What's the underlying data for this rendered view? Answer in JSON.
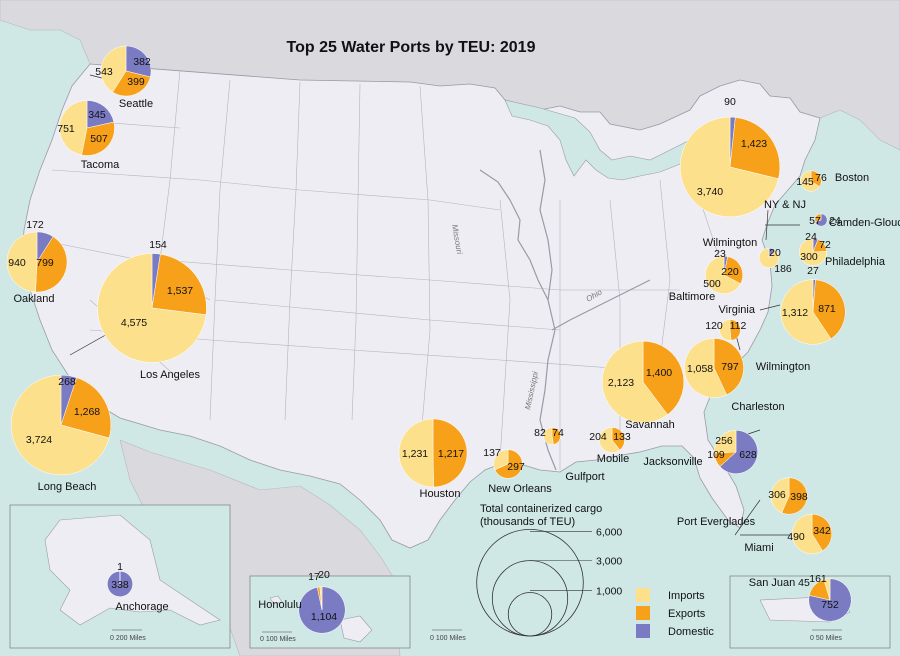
{
  "title": "Top 25 Water Ports by TEU: 2019",
  "colors": {
    "imports": "#fde08b",
    "exports": "#f7a11a",
    "domestic": "#7b7bc4",
    "land": "#ededf3",
    "foreign": "#d9d9de",
    "water": "#cfe8e6",
    "border": "#9a9aa8"
  },
  "legend": {
    "size_title_1": "Total containerized cargo",
    "size_title_2": "(thousands of TEU)",
    "sizes": [
      {
        "label": "6,000",
        "value": 6000
      },
      {
        "label": "3,000",
        "value": 3000
      },
      {
        "label": "1,000",
        "value": 1000
      }
    ],
    "imports": "Imports",
    "exports": "Exports",
    "domestic": "Domestic"
  },
  "rivers": {
    "missouri": "Missouri",
    "ohio": "Ohio",
    "mississippi": "Mississippi"
  },
  "scales": {
    "main": "0     100 Miles",
    "alaska": "0     200 Miles",
    "hawaii": "0     100 Miles",
    "puerto_rico": "0     50 Miles"
  },
  "ports": [
    {
      "name": "Seattle",
      "imports": 543,
      "exports": 399,
      "domestic": 382,
      "labels": {
        "imports": "543",
        "exports": "399",
        "domestic": "382"
      }
    },
    {
      "name": "Tacoma",
      "imports": 751,
      "exports": 507,
      "domestic": 345,
      "labels": {
        "imports": "751",
        "exports": "507",
        "domestic": "345"
      }
    },
    {
      "name": "Oakland",
      "imports": 940,
      "exports": 799,
      "domestic": 172,
      "labels": {
        "imports": "940",
        "exports": "799",
        "domestic": "172"
      }
    },
    {
      "name": "Los Angeles",
      "imports": 4575,
      "exports": 1537,
      "domestic": 154,
      "labels": {
        "imports": "4,575",
        "exports": "1,537",
        "domestic": "154"
      }
    },
    {
      "name": "Long Beach",
      "imports": 3724,
      "exports": 1268,
      "domestic": 268,
      "labels": {
        "imports": "3,724",
        "exports": "1,268",
        "domestic": "268"
      }
    },
    {
      "name": "Houston",
      "imports": 1231,
      "exports": 1217,
      "domestic": 0,
      "labels": {
        "imports": "1,231",
        "exports": "1,217",
        "domestic": ""
      }
    },
    {
      "name": "New Orleans",
      "imports": 137,
      "exports": 297,
      "domestic": 0,
      "labels": {
        "imports": "137",
        "exports": "297",
        "domestic": ""
      }
    },
    {
      "name": "Gulfport",
      "imports": 82,
      "exports": 74,
      "domestic": 0,
      "labels": {
        "imports": "82",
        "exports": "74",
        "domestic": ""
      }
    },
    {
      "name": "Mobile",
      "imports": 204,
      "exports": 133,
      "domestic": 0,
      "labels": {
        "imports": "204",
        "exports": "133",
        "domestic": ""
      }
    },
    {
      "name": "Jacksonville",
      "imports": 256,
      "exports": 109,
      "domestic": 628,
      "labels": {
        "imports": "256",
        "exports": "109",
        "domestic": "628"
      }
    },
    {
      "name": "Savannah",
      "imports": 2123,
      "exports": 1400,
      "domestic": 0,
      "labels": {
        "imports": "2,123",
        "exports": "1,400",
        "domestic": ""
      }
    },
    {
      "name": "Charleston",
      "imports": 1058,
      "exports": 797,
      "domestic": 0,
      "labels": {
        "imports": "1,058",
        "exports": "797",
        "domestic": ""
      }
    },
    {
      "name": "Wilmington",
      "imports": 120,
      "exports": 112,
      "domestic": 0,
      "labels": {
        "imports": "120",
        "exports": "112",
        "domestic": ""
      }
    },
    {
      "name": "Virginia",
      "imports": 1312,
      "exports": 871,
      "domestic": 27,
      "labels": {
        "imports": "1,312",
        "exports": "871",
        "domestic": "27"
      }
    },
    {
      "name": "Baltimore",
      "imports": 500,
      "exports": 220,
      "domestic": 23,
      "labels": {
        "imports": "500",
        "exports": "220",
        "domestic": "23"
      }
    },
    {
      "name": "Wilmington",
      "imports": 186,
      "exports": 0,
      "domestic": 20,
      "labels": {
        "imports": "186",
        "exports": "",
        "domestic": "20"
      }
    },
    {
      "name": "Philadelphia",
      "imports": 300,
      "exports": 72,
      "domestic": 24,
      "labels": {
        "imports": "300",
        "exports": "72",
        "domestic": "24"
      }
    },
    {
      "name": "Camden-Gloucester",
      "imports": 0,
      "exports": 24,
      "domestic": 57,
      "labels": {
        "imports": "",
        "exports": "24",
        "domestic": "57"
      }
    },
    {
      "name": "NY & NJ",
      "imports": 3740,
      "exports": 1423,
      "domestic": 90,
      "labels": {
        "imports": "3,740",
        "exports": "1,423",
        "domestic": "90"
      }
    },
    {
      "name": "Boston",
      "imports": 145,
      "exports": 76,
      "domestic": 0,
      "labels": {
        "imports": "145",
        "exports": "76",
        "domestic": ""
      }
    },
    {
      "name": "Port Everglades",
      "imports": 306,
      "exports": 398,
      "domestic": 0,
      "labels": {
        "imports": "306",
        "exports": "398",
        "domestic": ""
      }
    },
    {
      "name": "Miami",
      "imports": 490,
      "exports": 342,
      "domestic": 0,
      "labels": {
        "imports": "490",
        "exports": "342",
        "domestic": ""
      }
    },
    {
      "name": "San Juan",
      "imports": 45,
      "exports": 161,
      "domestic": 752,
      "labels": {
        "imports": "45",
        "exports": "161",
        "domestic": "752"
      }
    },
    {
      "name": "Honolulu",
      "imports": 17,
      "exports": 20,
      "domestic": 1104,
      "labels": {
        "imports": "17",
        "exports": "20",
        "domestic": "1,104"
      }
    },
    {
      "name": "Anchorage",
      "imports": 0,
      "exports": 1,
      "domestic": 338,
      "labels": {
        "imports": "",
        "exports": "1",
        "domestic": "338"
      }
    }
  ]
}
